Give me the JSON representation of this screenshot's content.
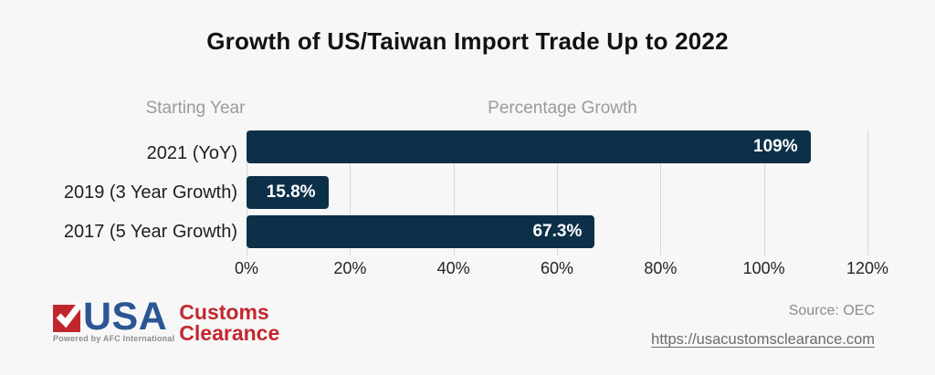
{
  "title": "Growth of US/Taiwan Import Trade Up to 2022",
  "chart_data": {
    "type": "bar",
    "orientation": "horizontal",
    "title": "Growth of US/Taiwan Import Trade Up to 2022",
    "column_headers": {
      "left": "Starting Year",
      "right": "Percentage Growth"
    },
    "categories": [
      "2021 (YoY)",
      "2019 (3 Year Growth)",
      "2017 (5 Year Growth)"
    ],
    "values": [
      15.8,
      67.3,
      109
    ],
    "value_labels": [
      "15.8%",
      "67.3%",
      "109%"
    ],
    "x_tick_labels": [
      "0%",
      "20%",
      "40%",
      "60%",
      "80%",
      "100%",
      "120%"
    ],
    "xlim": [
      0,
      120
    ],
    "grid": true,
    "legend": "none",
    "bar_color": "#0d3049"
  },
  "footer": {
    "logo": {
      "check_icon": "white checkmark in red square",
      "usa": "USA",
      "customs": "Customs",
      "clearance": "Clearance",
      "powered_by": "Powered by AFC International"
    },
    "source": "Source: OEC",
    "website_url": "https://usacustomsclearance.com"
  },
  "colors": {
    "background": "#f7f7f7",
    "bar": "#0d3049",
    "bar_label": "#ffffff",
    "gridline": "#d8d8d8",
    "header_text": "#9b9b9b",
    "category_text": "#1f1f1f",
    "logo_red": "#c0272d",
    "logo_blue": "#2b5693",
    "customs_red": "#c2282f",
    "source_gray": "#8c8c8c",
    "link_gray": "#6b6b6b"
  }
}
